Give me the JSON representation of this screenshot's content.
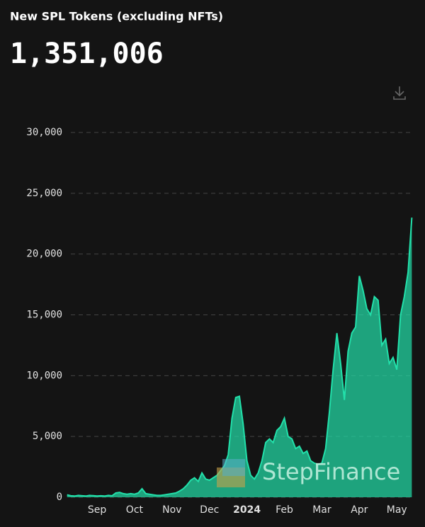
{
  "chart_data": {
    "type": "area",
    "title": "New SPL Tokens (excluding NFTs)",
    "total": "1,351,006",
    "watermark": "StepFinance",
    "categories": [
      null,
      null,
      null,
      null,
      null,
      null,
      null,
      null,
      "Sep",
      null,
      null,
      null,
      null,
      null,
      null,
      null,
      null,
      null,
      "Oct",
      null,
      null,
      null,
      null,
      null,
      null,
      null,
      null,
      null,
      "Nov",
      null,
      null,
      null,
      null,
      null,
      null,
      null,
      null,
      null,
      "Dec",
      null,
      null,
      null,
      null,
      null,
      null,
      null,
      null,
      null,
      "2024",
      null,
      null,
      null,
      null,
      null,
      null,
      null,
      null,
      null,
      "Feb",
      null,
      null,
      null,
      null,
      null,
      null,
      null,
      null,
      null,
      "Mar",
      null,
      null,
      null,
      null,
      null,
      null,
      null,
      null,
      null,
      "Apr",
      null,
      null,
      null,
      null,
      null,
      null,
      null,
      null,
      null,
      "May",
      null,
      null,
      null,
      null
    ],
    "values": [
      200,
      120,
      100,
      150,
      120,
      100,
      150,
      130,
      100,
      120,
      100,
      150,
      120,
      350,
      400,
      300,
      250,
      300,
      250,
      350,
      700,
      300,
      250,
      200,
      150,
      150,
      200,
      250,
      300,
      350,
      500,
      700,
      1000,
      1400,
      1600,
      1300,
      2000,
      1500,
      1400,
      1600,
      1800,
      2200,
      2600,
      3500,
      6500,
      8200,
      8300,
      6000,
      3000,
      1800,
      1500,
      2000,
      3000,
      4500,
      4800,
      4500,
      5500,
      5800,
      6500,
      5000,
      4800,
      4000,
      4200,
      3600,
      3800,
      3000,
      2800,
      2700,
      2800,
      4000,
      7000,
      10500,
      13500,
      11000,
      8000,
      12000,
      13500,
      14000,
      18200,
      17000,
      15500,
      15000,
      16500,
      16200,
      12500,
      13000,
      11000,
      11500,
      10500,
      15000,
      16500,
      18500,
      23000
    ],
    "color": "#22e0aa",
    "ylim": [
      0,
      30000
    ],
    "yticks": [
      0,
      {
        "value": 5000,
        "label": "5,000"
      },
      {
        "value": 10000,
        "label": "10,000"
      },
      {
        "value": 15000,
        "label": "15,000"
      },
      {
        "value": 20000,
        "label": "20,000"
      },
      {
        "value": 25000,
        "label": "25,000"
      },
      {
        "value": 30000,
        "label": "30,000"
      }
    ],
    "grid": true
  }
}
